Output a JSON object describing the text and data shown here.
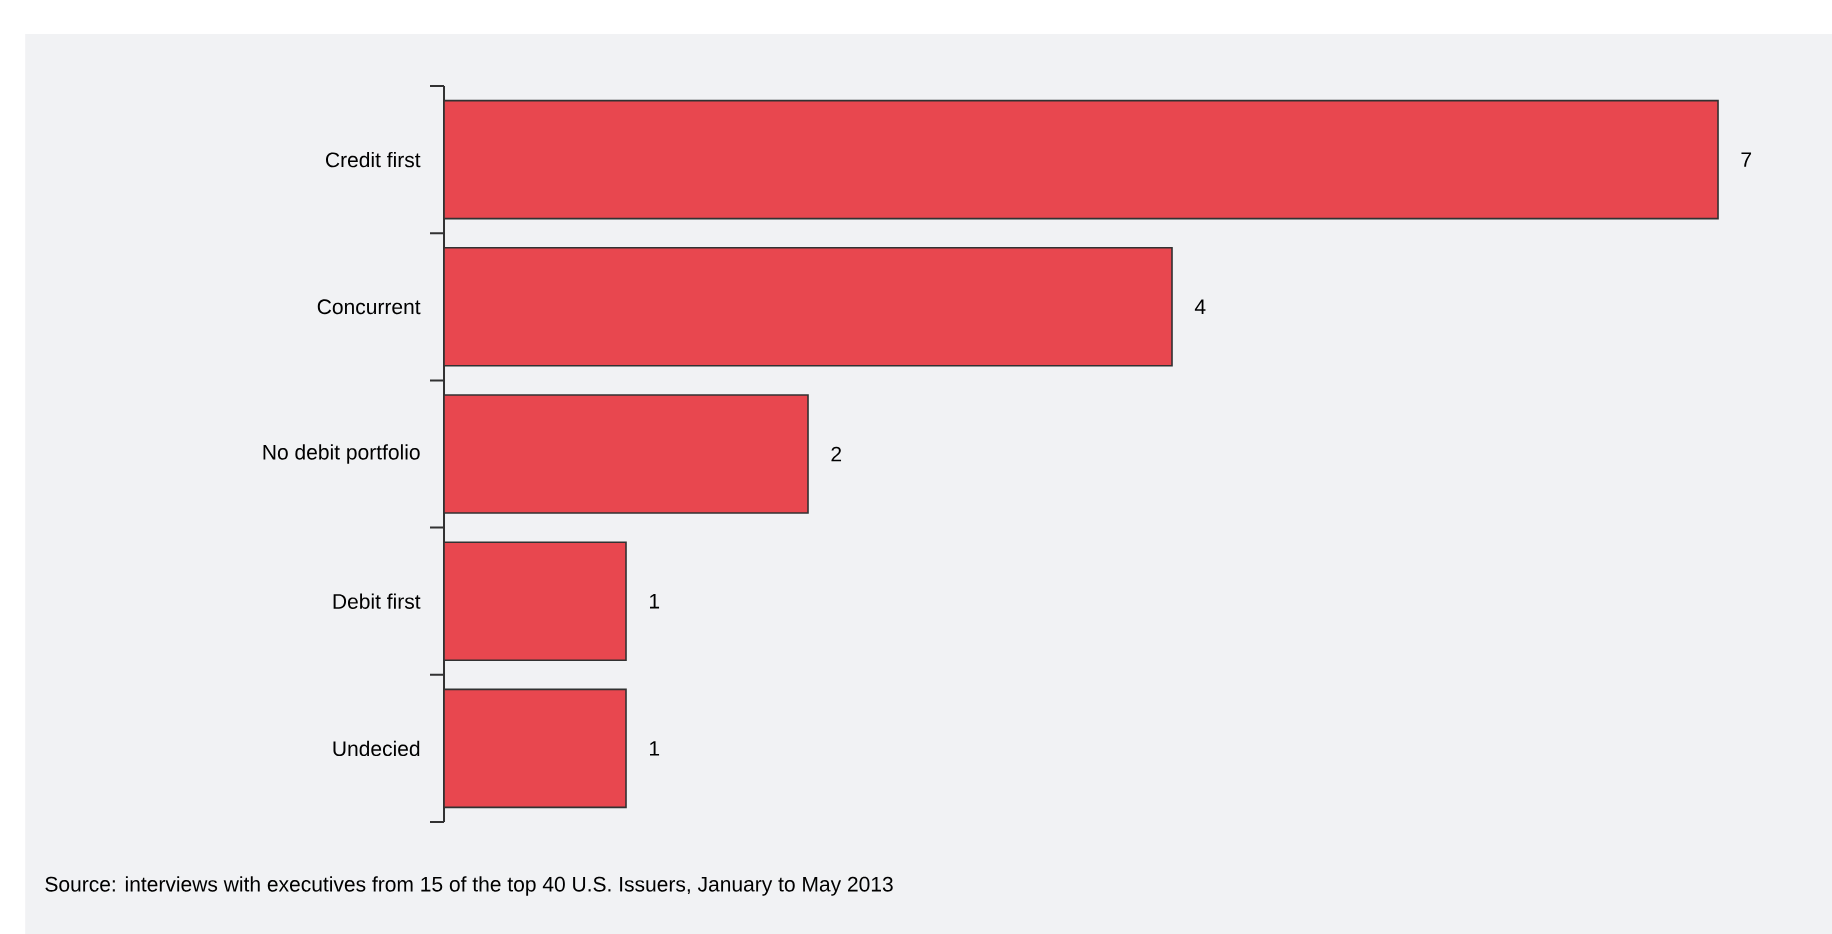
{
  "chart_data": {
    "type": "bar",
    "orientation": "horizontal",
    "categories": [
      "Credit first",
      "Concurrent",
      "No debit portfolio",
      "Debit first",
      "Undecied"
    ],
    "values": [
      7,
      4,
      2,
      1,
      1
    ],
    "color": "#e8474f",
    "data_labels": true,
    "annotations": [
      "Source: interviews with executives from 15 of the top 40 U.S. Issuers, January to May 2013"
    ]
  }
}
